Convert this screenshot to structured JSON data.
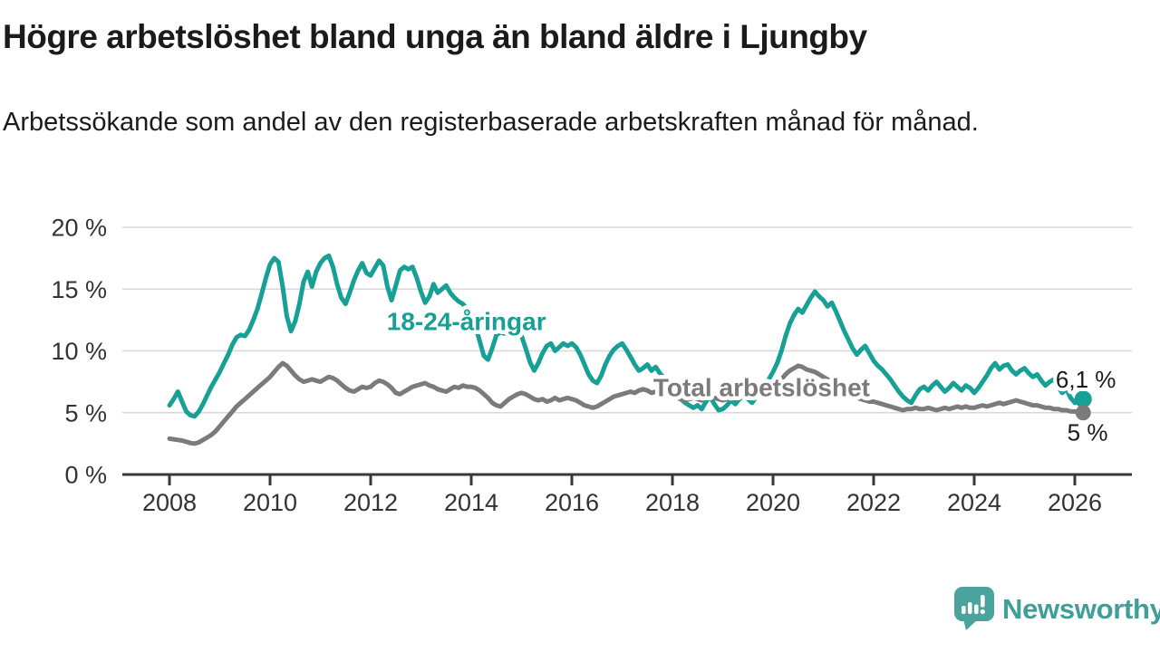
{
  "header": {
    "title": "Högre arbetslöshet bland unga än bland äldre i Ljungby",
    "subtitle": "Arbetssökande som andel av den registerbaserade arbetskraften månad för månad."
  },
  "footer": {
    "brand": "Newsworthy",
    "brand_color": "#3d9f98",
    "logo_icon": "bar-chart-speech-bubble",
    "logo_icon_color": "#4aa39d"
  },
  "chart_data": {
    "type": "line",
    "title": "Högre arbetslöshet bland unga än bland äldre i Ljungby",
    "subtitle": "Arbetssökande som andel av den registerbaserade arbetskraften månad för månad.",
    "xlabel": "",
    "ylabel": "",
    "grid": "horizontal",
    "grid_color": "#d8d8d8",
    "axis_color": "#383838",
    "ylim": [
      0,
      21
    ],
    "xlim": [
      2007.05,
      2027.15
    ],
    "x_start": 2008,
    "x_step_years": 0.08333,
    "x_unit": "month",
    "y_ticks": {
      "values": [
        0,
        5,
        10,
        15,
        20
      ],
      "labels": [
        "0 %",
        "5 %",
        "10 %",
        "15 %",
        "20 %"
      ]
    },
    "x_ticks": {
      "values": [
        2008,
        2010,
        2012,
        2014,
        2016,
        2018,
        2020,
        2022,
        2024,
        2026
      ],
      "labels": [
        "2008",
        "2010",
        "2012",
        "2014",
        "2016",
        "2018",
        "2020",
        "2022",
        "2024",
        "2026"
      ]
    },
    "legend_position": "inline-labels",
    "series": [
      {
        "key": "youth",
        "name": "18-24-åringar",
        "color": "#17a095",
        "line_width": 5,
        "dot_radius": 9.5,
        "label_pos": {
          "x": 2012.32,
          "y": 11.7
        },
        "end_label": "6,1 %",
        "end_value": 6.1,
        "end_label_pos": {
          "x": 2025.62,
          "y": 7.05
        },
        "values": [
          5.6,
          6.1,
          6.7,
          5.9,
          5.1,
          4.8,
          4.7,
          5.1,
          5.7,
          6.4,
          7.1,
          7.7,
          8.3,
          9.0,
          9.7,
          10.5,
          11.1,
          11.3,
          11.2,
          11.7,
          12.5,
          13.4,
          14.6,
          15.9,
          17.0,
          17.5,
          17.2,
          15.2,
          12.8,
          11.6,
          12.4,
          13.8,
          15.6,
          16.4,
          15.2,
          16.4,
          17.1,
          17.5,
          17.7,
          16.8,
          15.4,
          14.3,
          13.8,
          14.7,
          15.7,
          16.5,
          17.1,
          16.3,
          16.1,
          16.7,
          17.3,
          16.9,
          15.2,
          14.1,
          15.3,
          16.5,
          16.8,
          16.6,
          16.8,
          15.9,
          14.8,
          13.9,
          14.4,
          15.4,
          14.7,
          15.0,
          15.3,
          14.7,
          14.3,
          14.0,
          13.8,
          13.4,
          12.9,
          12.0,
          10.8,
          9.6,
          9.3,
          10.2,
          11.3,
          11.5,
          11.4,
          11.6,
          11.8,
          11.6,
          11.2,
          10.2,
          9.1,
          8.4,
          9.0,
          9.8,
          10.4,
          10.6,
          10.0,
          10.3,
          10.6,
          10.4,
          10.6,
          10.3,
          9.7,
          8.9,
          8.1,
          7.6,
          7.4,
          8.0,
          8.9,
          9.6,
          10.1,
          10.4,
          10.6,
          10.1,
          9.5,
          8.9,
          8.4,
          8.6,
          8.9,
          8.4,
          8.7,
          8.2,
          7.8,
          7.3,
          6.9,
          6.5,
          6.1,
          5.8,
          5.6,
          5.4,
          5.6,
          5.3,
          5.9,
          6.3,
          5.7,
          5.2,
          5.3,
          5.6,
          6.0,
          5.7,
          6.1,
          6.4,
          6.1,
          5.8,
          6.3,
          6.7,
          7.1,
          7.7,
          8.3,
          9.0,
          10.0,
          11.2,
          12.2,
          12.9,
          13.4,
          13.1,
          13.7,
          14.3,
          14.8,
          14.4,
          14.1,
          13.6,
          13.9,
          13.2,
          12.4,
          11.6,
          10.9,
          10.2,
          9.7,
          10.1,
          10.4,
          9.8,
          9.2,
          8.8,
          8.5,
          8.1,
          7.7,
          7.2,
          6.7,
          6.3,
          6.0,
          5.8,
          6.4,
          6.9,
          7.1,
          6.8,
          7.2,
          7.5,
          7.1,
          6.7,
          7.0,
          7.4,
          7.1,
          6.8,
          7.2,
          7.0,
          6.6,
          7.0,
          7.5,
          8.0,
          8.6,
          9.0,
          8.5,
          8.8,
          8.9,
          8.4,
          8.1,
          8.4,
          8.6,
          8.2,
          7.9,
          8.1,
          7.6,
          7.2,
          7.5,
          7.7,
          7.1,
          6.6,
          6.9,
          6.2,
          5.8,
          5.9,
          6.1
        ]
      },
      {
        "key": "total",
        "name": "Total arbetslöshet",
        "color": "#7b7b7b",
        "line_width": 5,
        "dot_radius": 8.5,
        "label_pos": {
          "x": 2017.62,
          "y": 6.35
        },
        "end_label": "5 %",
        "end_value": 5.0,
        "end_label_pos": {
          "x": 2025.85,
          "y": 2.75
        },
        "values": [
          2.9,
          2.85,
          2.8,
          2.75,
          2.65,
          2.55,
          2.5,
          2.6,
          2.8,
          3.0,
          3.2,
          3.5,
          3.9,
          4.3,
          4.7,
          5.1,
          5.5,
          5.8,
          6.1,
          6.4,
          6.7,
          7.0,
          7.3,
          7.6,
          7.9,
          8.3,
          8.7,
          9.0,
          8.8,
          8.4,
          8.0,
          7.7,
          7.5,
          7.6,
          7.7,
          7.6,
          7.5,
          7.7,
          7.9,
          7.8,
          7.6,
          7.3,
          7.0,
          6.8,
          6.7,
          6.9,
          7.1,
          7.0,
          7.1,
          7.4,
          7.6,
          7.5,
          7.3,
          7.0,
          6.6,
          6.5,
          6.7,
          6.9,
          7.1,
          7.2,
          7.3,
          7.4,
          7.2,
          7.1,
          6.9,
          6.8,
          6.7,
          6.9,
          7.1,
          7.0,
          7.2,
          7.1,
          7.1,
          7.0,
          6.8,
          6.5,
          6.2,
          5.8,
          5.6,
          5.5,
          5.8,
          6.1,
          6.3,
          6.5,
          6.6,
          6.5,
          6.3,
          6.1,
          6.0,
          6.1,
          5.9,
          6.0,
          6.2,
          6.0,
          6.1,
          6.2,
          6.1,
          6.0,
          5.8,
          5.6,
          5.5,
          5.4,
          5.5,
          5.7,
          5.9,
          6.1,
          6.3,
          6.4,
          6.5,
          6.6,
          6.7,
          6.6,
          6.8,
          6.9,
          6.8,
          6.6,
          6.7,
          6.6,
          6.5,
          6.4,
          6.3,
          6.2,
          6.1,
          6.0,
          6.1,
          6.2,
          6.1,
          6.0,
          6.2,
          6.3,
          6.2,
          6.1,
          6.0,
          6.1,
          6.2,
          6.1,
          6.2,
          6.3,
          6.2,
          6.3,
          6.4,
          6.5,
          6.6,
          6.8,
          7.0,
          7.3,
          7.7,
          8.1,
          8.4,
          8.6,
          8.8,
          8.7,
          8.5,
          8.4,
          8.3,
          8.1,
          7.9,
          7.7,
          7.5,
          7.3,
          7.0,
          6.8,
          6.6,
          6.4,
          6.2,
          6.1,
          6.0,
          5.9,
          5.9,
          5.8,
          5.7,
          5.6,
          5.5,
          5.4,
          5.3,
          5.2,
          5.3,
          5.3,
          5.4,
          5.3,
          5.3,
          5.4,
          5.3,
          5.2,
          5.3,
          5.4,
          5.3,
          5.4,
          5.5,
          5.4,
          5.5,
          5.4,
          5.4,
          5.5,
          5.6,
          5.5,
          5.6,
          5.7,
          5.8,
          5.7,
          5.8,
          5.9,
          6.0,
          5.9,
          5.8,
          5.7,
          5.6,
          5.6,
          5.5,
          5.4,
          5.4,
          5.3,
          5.3,
          5.2,
          5.2,
          5.1,
          5.1,
          5.0,
          5.0
        ]
      }
    ]
  }
}
